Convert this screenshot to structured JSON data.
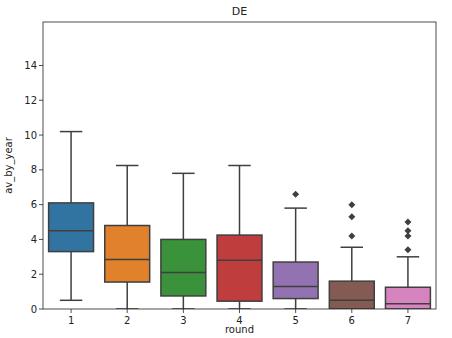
{
  "chart_data": {
    "type": "box",
    "title": "DE",
    "x_label": "round",
    "y_label": "av_by_year",
    "categories": [
      "1",
      "2",
      "3",
      "4",
      "5",
      "6",
      "7"
    ],
    "colors": [
      "#3274a1",
      "#e1812c",
      "#3a923a",
      "#c03d3e",
      "#9372b2",
      "#845b53",
      "#d684bd"
    ],
    "boxes": [
      {
        "whisker_low": 0.5,
        "q1": 3.3,
        "median": 4.5,
        "q3": 6.1,
        "whisker_high": 10.2,
        "outliers": []
      },
      {
        "whisker_low": 0,
        "q1": 1.55,
        "median": 2.85,
        "q3": 4.8,
        "whisker_high": 8.25,
        "outliers": []
      },
      {
        "whisker_low": 0,
        "q1": 0.75,
        "median": 2.1,
        "q3": 4.0,
        "whisker_high": 7.8,
        "outliers": []
      },
      {
        "whisker_low": 0,
        "q1": 0.45,
        "median": 2.8,
        "q3": 4.25,
        "whisker_high": 8.25,
        "outliers": []
      },
      {
        "whisker_low": 0,
        "q1": 0.6,
        "median": 1.3,
        "q3": 2.7,
        "whisker_high": 5.8,
        "outliers": [
          6.6
        ]
      },
      {
        "whisker_low": 0,
        "q1": 0,
        "median": 0.5,
        "q3": 1.6,
        "whisker_high": 3.55,
        "outliers": [
          4.2,
          5.3,
          6.0
        ]
      },
      {
        "whisker_low": 0,
        "q1": 0,
        "median": 0.3,
        "q3": 1.25,
        "whisker_high": 3.0,
        "outliers": [
          3.4,
          4.2,
          4.5,
          5.0
        ]
      }
    ],
    "ylim": [
      0,
      16.5
    ],
    "yticks": [
      0,
      2,
      4,
      6,
      8,
      10,
      12,
      14
    ]
  }
}
